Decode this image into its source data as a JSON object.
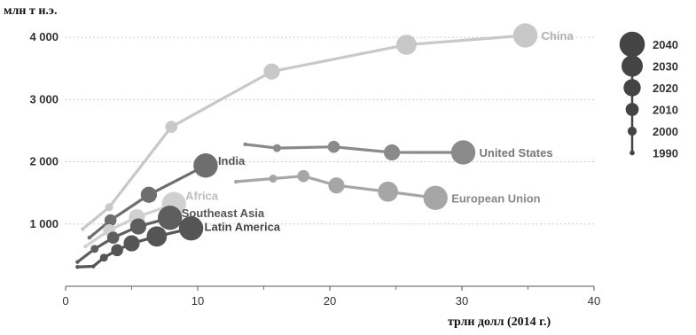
{
  "chart_data": {
    "type": "scatter",
    "ylabel": "млн т н.э.",
    "xlabel": "трлн долл (2014 г.)",
    "xlim": [
      0,
      40
    ],
    "ylim": [
      0,
      4400
    ],
    "x_ticks": [
      "0",
      "10",
      "20",
      "30",
      "40"
    ],
    "y_ticks": [
      {
        "value": 1000,
        "label": "1 000"
      },
      {
        "value": 2000,
        "label": "2 000"
      },
      {
        "value": 3000,
        "label": "3 000"
      },
      {
        "value": 4000,
        "label": "4 000"
      }
    ],
    "grid": "horizontal dotted",
    "legend_title": "",
    "legend": {
      "placement": "right",
      "entries": [
        {
          "year": "2040",
          "size": 6
        },
        {
          "year": "2030",
          "size": 5
        },
        {
          "year": "2020",
          "size": 4
        },
        {
          "year": "2010",
          "size": 3
        },
        {
          "year": "2000",
          "size": 2
        },
        {
          "year": "1990",
          "size": 1
        }
      ]
    },
    "series": [
      {
        "name": "China",
        "color": "#c8c8c8",
        "label_color": "#b0b0b0",
        "points": [
          {
            "x": 1.3,
            "y": 920,
            "size": 1
          },
          {
            "x": 3.3,
            "y": 1270,
            "size": 2
          },
          {
            "x": 8.0,
            "y": 2560,
            "size": 3
          },
          {
            "x": 15.6,
            "y": 3450,
            "size": 4
          },
          {
            "x": 25.8,
            "y": 3880,
            "size": 5
          },
          {
            "x": 34.8,
            "y": 4030,
            "size": 6
          }
        ]
      },
      {
        "name": "United States",
        "color": "#8a8a8a",
        "label_color": "#777777",
        "points": [
          {
            "x": 13.6,
            "y": 2280,
            "size": 1
          },
          {
            "x": 16.0,
            "y": 2220,
            "size": 2
          },
          {
            "x": 20.3,
            "y": 2240,
            "size": 3
          },
          {
            "x": 24.7,
            "y": 2150,
            "size": 4
          },
          {
            "x": 30.1,
            "y": 2150,
            "size": 6
          }
        ]
      },
      {
        "name": "European Union",
        "color": "#a6a6a6",
        "label_color": "#888888",
        "points": [
          {
            "x": 12.9,
            "y": 1680,
            "size": 1
          },
          {
            "x": 15.7,
            "y": 1730,
            "size": 2
          },
          {
            "x": 18.0,
            "y": 1770,
            "size": 3
          },
          {
            "x": 20.5,
            "y": 1620,
            "size": 4
          },
          {
            "x": 24.4,
            "y": 1520,
            "size": 5
          },
          {
            "x": 28.0,
            "y": 1420,
            "size": 6
          }
        ]
      },
      {
        "name": "India",
        "color": "#6e6e6e",
        "label_color": "#555555",
        "points": [
          {
            "x": 1.8,
            "y": 780,
            "size": 1
          },
          {
            "x": 3.4,
            "y": 1060,
            "size": 3
          },
          {
            "x": 6.3,
            "y": 1470,
            "size": 4
          },
          {
            "x": 10.6,
            "y": 1940,
            "size": 6
          }
        ]
      },
      {
        "name": "Africa",
        "color": "#d0d0d0",
        "label_color": "#bdbdbd",
        "points": [
          {
            "x": 1.5,
            "y": 640,
            "size": 1
          },
          {
            "x": 3.3,
            "y": 900,
            "size": 3
          },
          {
            "x": 5.4,
            "y": 1110,
            "size": 4
          },
          {
            "x": 8.2,
            "y": 1320,
            "size": 6
          }
        ]
      },
      {
        "name": "Southeast Asia",
        "color": "#5e5e5e",
        "label_color": "#555555",
        "points": [
          {
            "x": 0.9,
            "y": 390,
            "size": 1
          },
          {
            "x": 2.2,
            "y": 600,
            "size": 2
          },
          {
            "x": 3.6,
            "y": 780,
            "size": 3
          },
          {
            "x": 5.5,
            "y": 960,
            "size": 4
          },
          {
            "x": 7.9,
            "y": 1100,
            "size": 6
          }
        ]
      },
      {
        "name": "Latin America",
        "color": "#555555",
        "label_color": "#444444",
        "points": [
          {
            "x": 0.9,
            "y": 310,
            "size": 1
          },
          {
            "x": 2.1,
            "y": 320,
            "size": 1
          },
          {
            "x": 2.9,
            "y": 460,
            "size": 2
          },
          {
            "x": 3.9,
            "y": 580,
            "size": 3
          },
          {
            "x": 5.0,
            "y": 690,
            "size": 4
          },
          {
            "x": 6.9,
            "y": 800,
            "size": 5
          },
          {
            "x": 9.5,
            "y": 930,
            "size": 6
          }
        ]
      }
    ]
  }
}
